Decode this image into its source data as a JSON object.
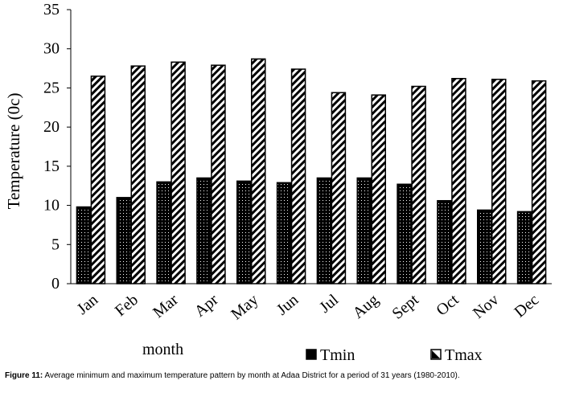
{
  "chart_data": {
    "type": "bar",
    "categories": [
      "Jan",
      "Feb",
      "Mar",
      "Apr",
      "May",
      "Jun",
      "Jul",
      "Aug",
      "Sept",
      "Oct",
      "Nov",
      "Dec"
    ],
    "series": [
      {
        "name": "Tmin",
        "values": [
          9.8,
          11.0,
          13.0,
          13.5,
          13.1,
          12.9,
          13.5,
          13.5,
          12.7,
          10.6,
          9.4,
          9.2
        ]
      },
      {
        "name": "Tmax",
        "values": [
          26.5,
          27.8,
          28.3,
          27.9,
          28.7,
          27.4,
          24.4,
          24.1,
          25.2,
          26.2,
          26.1,
          25.9
        ]
      }
    ],
    "xlabel": "month",
    "ylabel": "Temperature (0c)",
    "ylim": [
      0,
      35
    ],
    "yticks": [
      0,
      5,
      10,
      15,
      20,
      25,
      30,
      35
    ],
    "grid": false,
    "legend": "bottom-right"
  },
  "caption": {
    "label": "Figure 11:",
    "text": " Average minimum and maximum temperature pattern by month at Adaa District for a period of 31 years (1980-2010)."
  }
}
